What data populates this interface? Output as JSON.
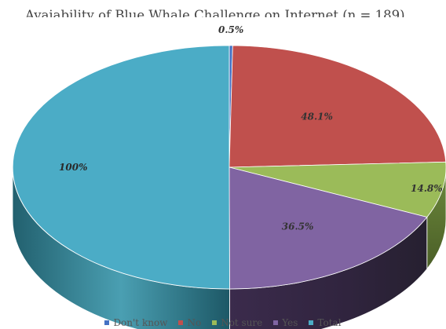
{
  "chart_data": {
    "type": "pie",
    "title": "Avaiability of Blue Whale Challenge on Internet (n = 189)",
    "categories": [
      "Don't know",
      "No",
      "Not sure",
      "Yes",
      "Total"
    ],
    "values": [
      0.5,
      48.1,
      14.8,
      36.5,
      100
    ],
    "data_labels": [
      "0.5%",
      "48.1%",
      "14.8%",
      "36.5%",
      "100%"
    ],
    "colors": [
      "#4472c4",
      "#c0504d",
      "#9bbb59",
      "#8064a2",
      "#4bacc6"
    ],
    "style": "3d",
    "legend_position": "bottom"
  }
}
